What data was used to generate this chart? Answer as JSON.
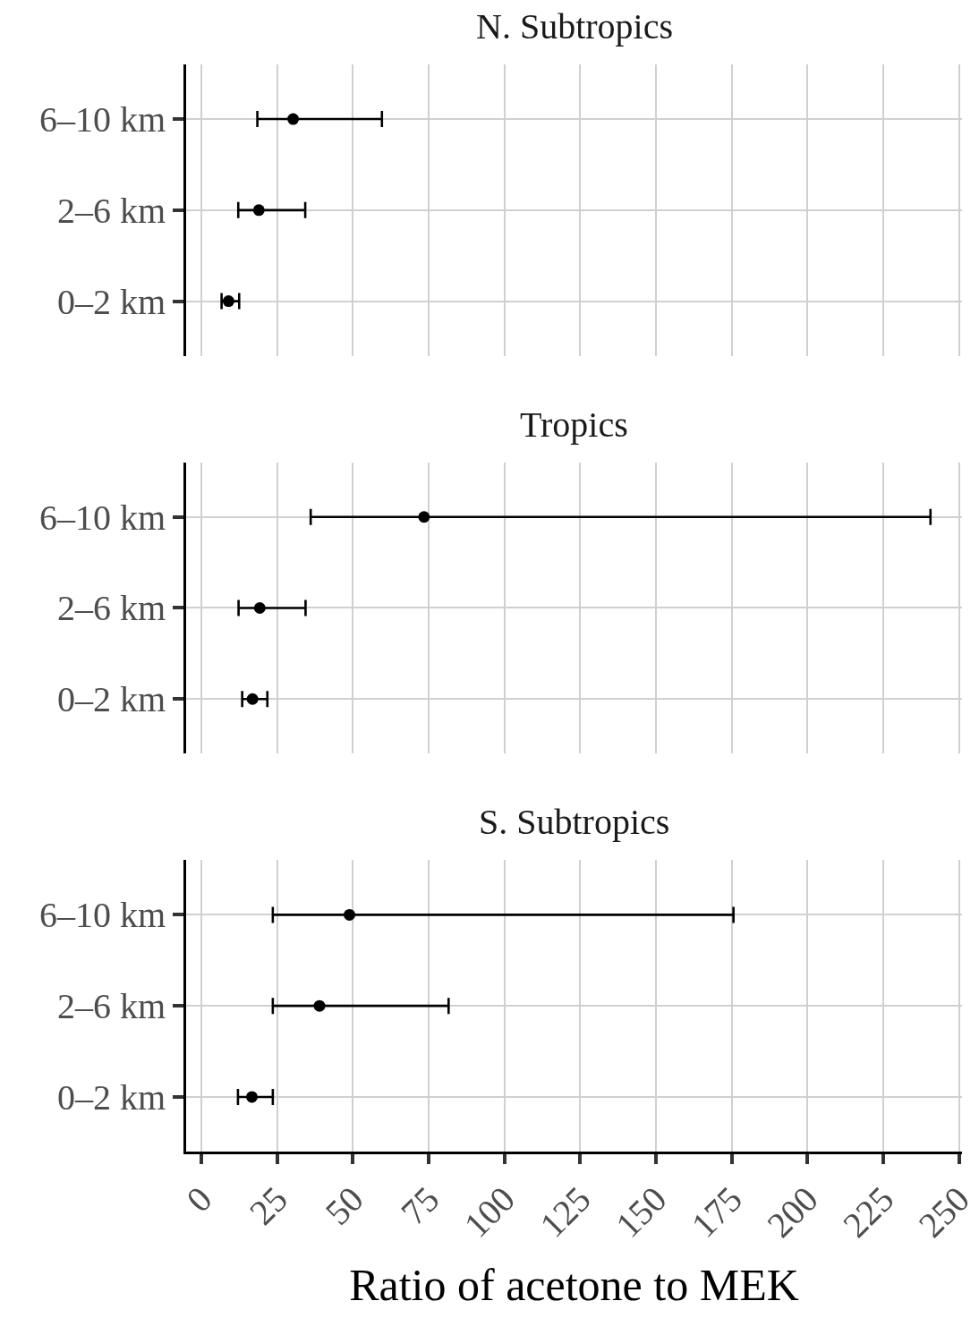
{
  "chart_data": [
    {
      "type": "scatter",
      "orientation": "horizontal",
      "title": "N. Subtropics",
      "categories": [
        "6–10 km",
        "2–6 km",
        "0–2 km"
      ],
      "values": [
        30.3,
        19.0,
        9.0
      ],
      "errors": [
        [
          18.5,
          59.6
        ],
        [
          12.2,
          34.3
        ],
        [
          6.7,
          12.5
        ]
      ],
      "color": "#000000",
      "marker": "circle",
      "xlim": [
        -5,
        251
      ],
      "xticks": [
        0,
        25,
        50,
        75,
        100,
        125,
        150,
        175,
        200,
        225,
        250
      ],
      "grid": true,
      "tick_labels": "y"
    },
    {
      "type": "scatter",
      "orientation": "horizontal",
      "title": "Tropics",
      "categories": [
        "6–10 km",
        "2–6 km",
        "0–2 km"
      ],
      "values": [
        73.5,
        19.3,
        16.9
      ],
      "errors": [
        [
          36.1,
          240.6
        ],
        [
          12.3,
          34.4
        ],
        [
          13.5,
          21.8
        ]
      ],
      "color": "#000000",
      "marker": "circle",
      "xlim": [
        -5,
        251
      ],
      "xticks": [
        0,
        25,
        50,
        75,
        100,
        125,
        150,
        175,
        200,
        225,
        250
      ],
      "grid": true,
      "tick_labels": "y"
    },
    {
      "type": "scatter",
      "orientation": "horizontal",
      "title": "S. Subtropics",
      "xlabel": "Ratio of acetone to MEK",
      "categories": [
        "6–10 km",
        "2–6 km",
        "0–2 km"
      ],
      "values": [
        48.9,
        39.0,
        16.7
      ],
      "errors": [
        [
          23.6,
          175.6
        ],
        [
          23.6,
          81.6
        ],
        [
          12.1,
          23.6
        ]
      ],
      "color": "#000000",
      "marker": "circle",
      "xlim": [
        -5,
        251
      ],
      "xticks": [
        0,
        25,
        50,
        75,
        100,
        125,
        150,
        175,
        200,
        225,
        250
      ],
      "grid": true
    }
  ]
}
